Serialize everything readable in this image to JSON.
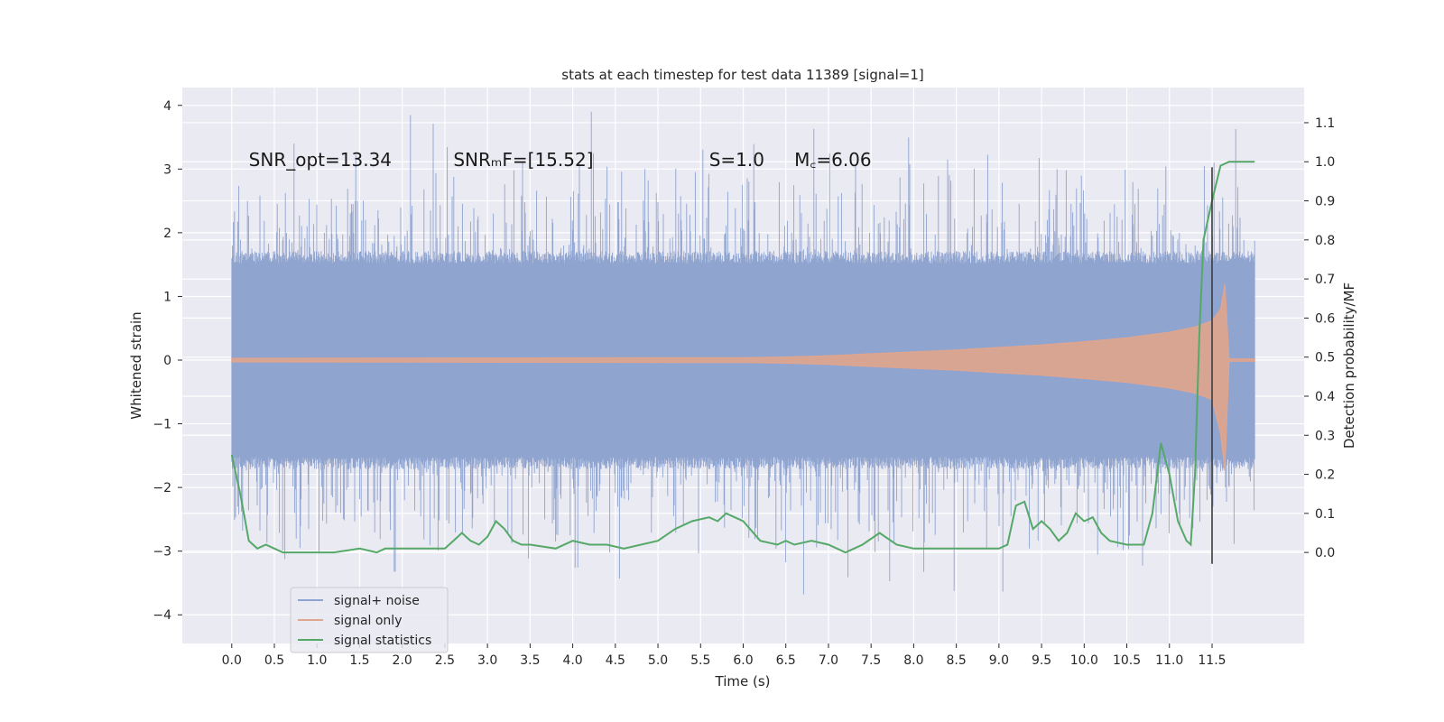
{
  "chart_data": {
    "type": "line",
    "title": "stats at each timestep for test data 11389 [signal=1]",
    "xlabel": "Time (s)",
    "ylabel": "Whitened strain",
    "y2label": "Detection probability/MF",
    "xlim": [
      -0.58,
      12.58
    ],
    "ylim": [
      -4.45,
      4.28
    ],
    "y2lim": [
      -0.233,
      1.19
    ],
    "x_ticks": [
      "0.0",
      "0.5",
      "1.0",
      "1.5",
      "2.0",
      "2.5",
      "3.0",
      "3.5",
      "4.0",
      "4.5",
      "5.0",
      "5.5",
      "6.0",
      "6.5",
      "7.0",
      "7.5",
      "8.0",
      "8.5",
      "9.0",
      "9.5",
      "10.0",
      "10.5",
      "11.0",
      "11.5"
    ],
    "y_ticks": [
      "−4",
      "−3",
      "−2",
      "−1",
      "0",
      "1",
      "2",
      "3",
      "4"
    ],
    "y2_ticks": [
      "0.0",
      "0.1",
      "0.2",
      "0.3",
      "0.4",
      "0.5",
      "0.6",
      "0.7",
      "0.8",
      "0.9",
      "1.0",
      "1.1"
    ],
    "grid": true,
    "legend_position": "lower-left",
    "annotations": [
      {
        "text": "SNR_opt=13.34",
        "x": 0.2,
        "y": 3.05
      },
      {
        "text": "SNRₘF=[15.52]",
        "x": 2.6,
        "y": 3.05
      },
      {
        "text": "S=1.0",
        "x": 5.6,
        "y": 3.05
      },
      {
        "text": "M꜀=6.06",
        "x": 6.6,
        "y": 3.05
      }
    ],
    "marker_line": {
      "x": 11.5,
      "ymin": -3.2,
      "ymax": 3.03,
      "color": "#3b3b3b"
    },
    "series": [
      {
        "name": "signal+ noise",
        "color": "#8fa4cf",
        "axis": "left",
        "x_range": [
          0.0,
          12.0
        ],
        "typical_amplitude": 1.6,
        "peak_amplitude": 3.9
      },
      {
        "name": "signal only",
        "color": "#e0a58e",
        "axis": "left",
        "x_range": [
          0.0,
          12.0
        ],
        "envelope": {
          "x": [
            0.0,
            6.0,
            6.5,
            7.0,
            7.5,
            8.0,
            8.5,
            9.0,
            9.5,
            10.0,
            10.5,
            11.0,
            11.3,
            11.5,
            11.6,
            11.65,
            11.7,
            12.0
          ],
          "y": [
            0.03,
            0.04,
            0.05,
            0.07,
            0.1,
            0.13,
            0.16,
            0.2,
            0.24,
            0.29,
            0.35,
            0.44,
            0.52,
            0.62,
            0.8,
            1.2,
            0.02,
            0.02
          ]
        }
      },
      {
        "name": "signal statistics",
        "color": "#55a868",
        "axis": "right",
        "x": [
          0.0,
          0.05,
          0.1,
          0.15,
          0.2,
          0.3,
          0.4,
          0.5,
          0.6,
          0.8,
          1.0,
          1.2,
          1.5,
          1.7,
          1.8,
          2.0,
          2.2,
          2.5,
          2.6,
          2.7,
          2.8,
          2.9,
          3.0,
          3.1,
          3.2,
          3.3,
          3.4,
          3.5,
          3.8,
          4.0,
          4.2,
          4.3,
          4.4,
          4.6,
          5.0,
          5.2,
          5.4,
          5.6,
          5.7,
          5.8,
          5.9,
          6.0,
          6.2,
          6.4,
          6.5,
          6.6,
          6.8,
          7.0,
          7.2,
          7.3,
          7.4,
          7.6,
          7.8,
          8.0,
          8.2,
          8.4,
          8.6,
          9.0,
          9.1,
          9.2,
          9.3,
          9.4,
          9.5,
          9.6,
          9.7,
          9.8,
          9.9,
          10.0,
          10.1,
          10.2,
          10.3,
          10.5,
          10.7,
          10.8,
          10.9,
          11.0,
          11.1,
          11.2,
          11.25,
          11.3,
          11.35,
          11.4,
          11.5,
          11.6,
          11.7,
          11.8,
          11.9,
          12.0
        ],
        "y": [
          0.25,
          0.2,
          0.15,
          0.09,
          0.03,
          0.01,
          0.02,
          0.01,
          0.0,
          0.0,
          0.0,
          0.0,
          0.01,
          0.0,
          0.01,
          0.01,
          0.01,
          0.01,
          0.03,
          0.05,
          0.03,
          0.02,
          0.04,
          0.08,
          0.06,
          0.03,
          0.02,
          0.02,
          0.01,
          0.03,
          0.02,
          0.02,
          0.02,
          0.01,
          0.03,
          0.06,
          0.08,
          0.09,
          0.08,
          0.1,
          0.09,
          0.08,
          0.03,
          0.02,
          0.03,
          0.02,
          0.03,
          0.02,
          0.0,
          0.01,
          0.02,
          0.05,
          0.02,
          0.01,
          0.01,
          0.01,
          0.01,
          0.01,
          0.02,
          0.12,
          0.13,
          0.06,
          0.08,
          0.06,
          0.03,
          0.05,
          0.1,
          0.08,
          0.09,
          0.05,
          0.03,
          0.02,
          0.02,
          0.1,
          0.28,
          0.2,
          0.08,
          0.03,
          0.02,
          0.2,
          0.55,
          0.8,
          0.9,
          0.99,
          1.0,
          1.0,
          1.0,
          1.0
        ]
      }
    ]
  }
}
